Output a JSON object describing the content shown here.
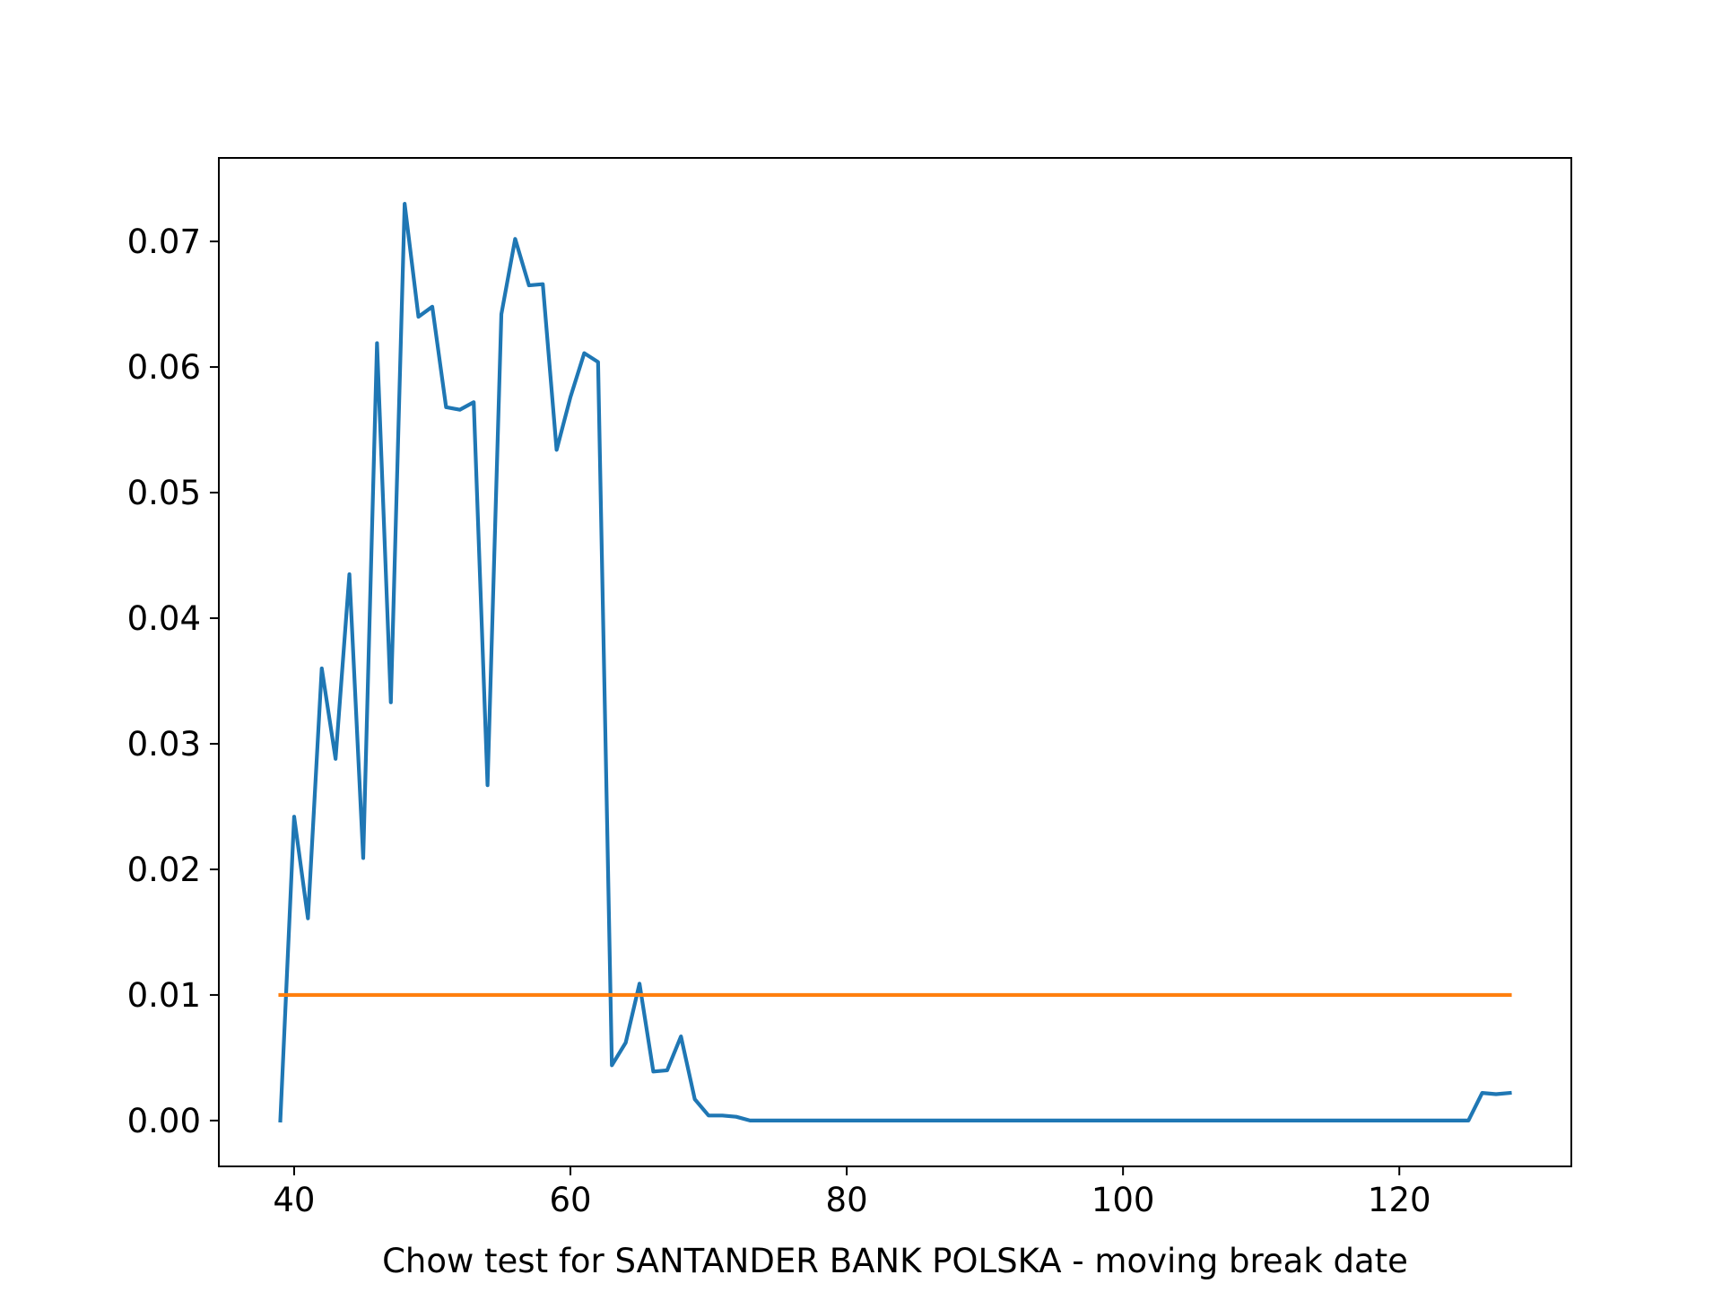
{
  "chart_data": {
    "type": "line",
    "title": "",
    "xlabel": "Chow test for SANTANDER BANK POLSKA - moving break date",
    "ylabel": "",
    "xlim": [
      34.55,
      132.45
    ],
    "ylim": [
      -0.00365,
      0.07665
    ],
    "xticks": [
      40,
      60,
      80,
      100,
      120
    ],
    "xtick_labels": [
      "40",
      "60",
      "80",
      "100",
      "120"
    ],
    "yticks": [
      0.0,
      0.01,
      0.02,
      0.03,
      0.04,
      0.05,
      0.06,
      0.07
    ],
    "ytick_labels": [
      "0.00",
      "0.01",
      "0.02",
      "0.03",
      "0.04",
      "0.05",
      "0.06",
      "0.07"
    ],
    "grid": false,
    "legend": "none",
    "series": [
      {
        "color": "#1f77b4",
        "x": [
          39,
          40,
          41,
          42,
          43,
          44,
          45,
          46,
          47,
          48,
          49,
          50,
          51,
          52,
          53,
          54,
          55,
          56,
          57,
          58,
          59,
          60,
          61,
          62,
          63,
          64,
          65,
          66,
          67,
          68,
          69,
          70,
          71,
          72,
          73,
          74,
          75,
          76,
          77,
          78,
          79,
          80,
          81,
          82,
          83,
          84,
          85,
          86,
          87,
          88,
          89,
          90,
          91,
          92,
          93,
          94,
          95,
          96,
          97,
          98,
          99,
          100,
          101,
          102,
          103,
          104,
          105,
          106,
          107,
          108,
          109,
          110,
          111,
          112,
          113,
          114,
          115,
          116,
          117,
          118,
          119,
          120,
          121,
          122,
          123,
          124,
          125,
          126,
          127,
          128
        ],
        "values": [
          0.0,
          0.0242,
          0.0161,
          0.036,
          0.0288,
          0.0435,
          0.0209,
          0.0619,
          0.0333,
          0.073,
          0.064,
          0.0648,
          0.0568,
          0.0566,
          0.0572,
          0.0267,
          0.0642,
          0.0702,
          0.0665,
          0.0666,
          0.0534,
          0.0576,
          0.0611,
          0.0604,
          0.0044,
          0.0062,
          0.0109,
          0.0039,
          0.004,
          0.0067,
          0.0017,
          0.0004,
          0.0004,
          0.0003,
          0.0,
          0.0,
          0.0,
          0.0,
          0.0,
          0.0,
          0.0,
          0.0,
          0.0,
          0.0,
          0.0,
          0.0,
          0.0,
          0.0,
          0.0,
          0.0,
          0.0,
          0.0,
          0.0,
          0.0,
          0.0,
          0.0,
          0.0,
          0.0,
          0.0,
          0.0,
          0.0,
          0.0,
          0.0,
          0.0,
          0.0,
          0.0,
          0.0,
          0.0,
          0.0,
          0.0,
          0.0,
          0.0,
          0.0,
          0.0,
          0.0,
          0.0,
          0.0,
          0.0,
          0.0,
          0.0,
          0.0,
          0.0,
          0.0,
          0.0,
          0.0,
          0.0,
          0.0,
          0.0022,
          0.0021,
          0.0022
        ]
      },
      {
        "color": "#ff7f0e",
        "x": [
          39,
          128
        ],
        "values": [
          0.01,
          0.01
        ]
      }
    ]
  }
}
